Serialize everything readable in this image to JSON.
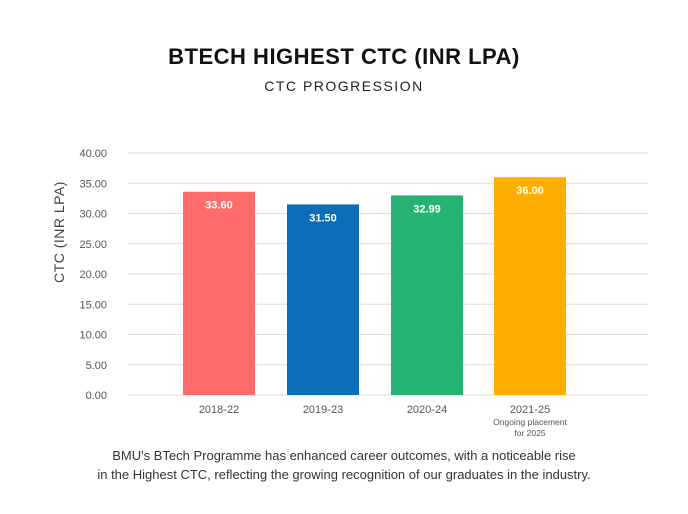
{
  "chart_data": {
    "type": "bar",
    "title": "BTECH HIGHEST CTC (INR LPA)",
    "subtitle": "CTC PROGRESSION",
    "xlabel": "",
    "ylabel": "CTC (INR LPA)",
    "ylim": [
      0,
      40
    ],
    "yticks": [
      "0.00",
      "5.00",
      "10.00",
      "15.00",
      "20.00",
      "25.00",
      "30.00",
      "35.00",
      "40.00"
    ],
    "grid": true,
    "categories": [
      "2018-22",
      "2019-23",
      "2020-24",
      "2021-25"
    ],
    "category_notes": [
      "",
      "",
      "",
      "Ongoing placement for 2025"
    ],
    "values": [
      33.6,
      31.5,
      32.99,
      36.0
    ],
    "data_labels": [
      "33.60",
      "31.50",
      "32.99",
      "36.00"
    ],
    "colors": [
      "#FF6B6B",
      "#0C6DB8",
      "#27B373",
      "#FFAE00"
    ]
  },
  "caption": {
    "line1": "BMU's BTech Programme has enhanced career outcomes, with a noticeable rise",
    "line2": "in the Highest CTC, reflecting the growing recognition of our graduates in the industry."
  },
  "colors": {
    "grid": "#DDDDDD",
    "tick_text": "#555555",
    "data_label_text": "#FFFFFF"
  }
}
